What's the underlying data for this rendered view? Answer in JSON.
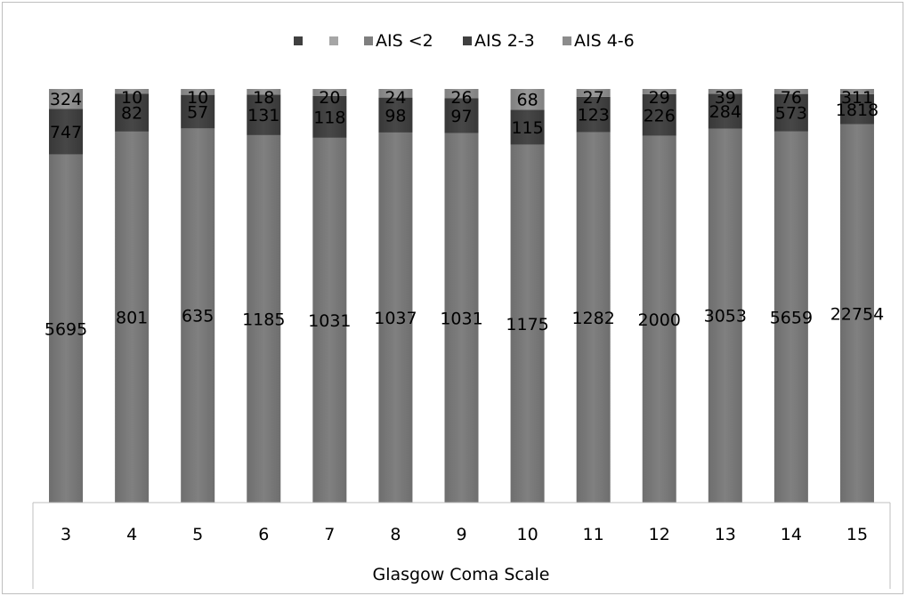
{
  "chart_data": {
    "type": "bar",
    "stacked": true,
    "percent_stacked": true,
    "xlabel": "Glasgow Coma Scale",
    "ylabel": "",
    "legend_position": "top",
    "grid": false,
    "categories": [
      "3",
      "4",
      "5",
      "6",
      "7",
      "8",
      "9",
      "10",
      "11",
      "12",
      "13",
      "14",
      "15"
    ],
    "legend": [
      {
        "name": "",
        "color": "#404040"
      },
      {
        "name": "",
        "color": "#a6a6a6"
      },
      {
        "name": "AIS <2",
        "color": "#7f7f7f"
      },
      {
        "name": "AIS 2-3",
        "color": "#404040"
      },
      {
        "name": "AIS 4-6",
        "color": "#8c8c8c"
      }
    ],
    "series": [
      {
        "name": "AIS <2",
        "color": "#7a7a7a",
        "values": [
          5695,
          801,
          635,
          1185,
          1031,
          1037,
          1031,
          1175,
          1282,
          2000,
          3053,
          5659,
          22754
        ]
      },
      {
        "name": "AIS 2-3",
        "color": "#404040",
        "values": [
          747,
          82,
          57,
          131,
          118,
          98,
          97,
          115,
          123,
          226,
          284,
          573,
          1818
        ]
      },
      {
        "name": "AIS 4-6",
        "color": "#8c8c8c",
        "values": [
          324,
          10,
          10,
          18,
          20,
          24,
          26,
          68,
          27,
          29,
          39,
          76,
          311
        ]
      }
    ]
  }
}
